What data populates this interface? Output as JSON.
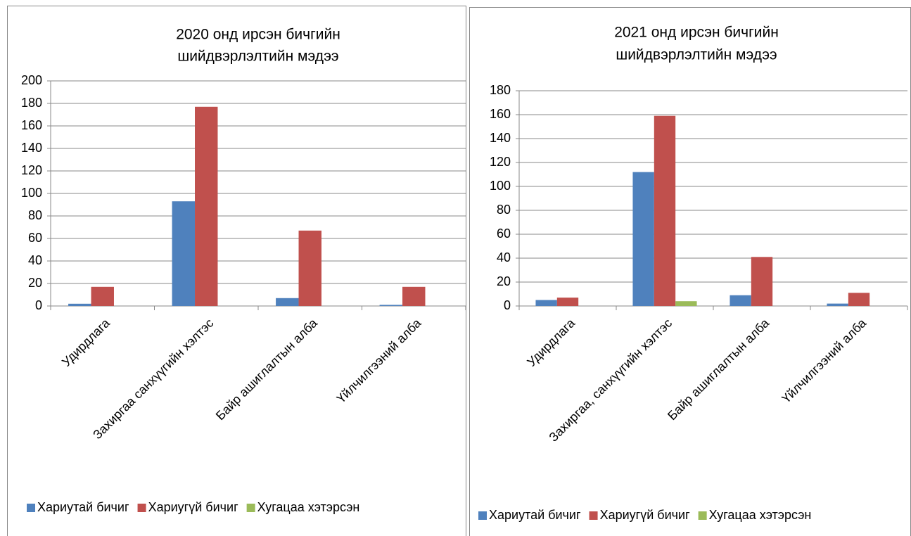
{
  "chart_data": [
    {
      "type": "bar",
      "title": [
        "2020 онд ирсэн бичгийн",
        "шийдвэрлэлтийн мэдээ"
      ],
      "categories": [
        "Удирдлага",
        "Захиргаа санхүүгийн хэлтэс",
        "Байр ашиглалтын алба",
        "Үйлчилгээний алба"
      ],
      "series": [
        {
          "name": "Хариутай бичиг",
          "color": "#4f81bd",
          "values": [
            2,
            93,
            7,
            1
          ]
        },
        {
          "name": "Хариугүй бичиг",
          "color": "#c0504d",
          "values": [
            17,
            177,
            67,
            17
          ]
        },
        {
          "name": "Хугацаа хэтэрсэн",
          "color": "#9bbb59",
          "values": [
            0,
            0,
            0,
            0
          ]
        }
      ],
      "ylim": [
        0,
        200
      ],
      "yticks": [
        0,
        20,
        40,
        60,
        80,
        100,
        120,
        140,
        160,
        180,
        200
      ],
      "grid": true,
      "legend": "bottom"
    },
    {
      "type": "bar",
      "title": [
        "2021 онд ирсэн бичгийн",
        "шийдвэрлэлтийн мэдээ"
      ],
      "categories": [
        "Удирдлага",
        "Захиргаа, санхүүгийн хэлтэс",
        "Байр ашиглалтын алба",
        "Үйлчилгээний алба"
      ],
      "series": [
        {
          "name": "Хариутай бичиг",
          "color": "#4f81bd",
          "values": [
            5,
            112,
            9,
            2
          ]
        },
        {
          "name": "Хариугүй бичиг",
          "color": "#c0504d",
          "values": [
            7,
            159,
            41,
            11
          ]
        },
        {
          "name": "Хугацаа хэтэрсэн",
          "color": "#9bbb59",
          "values": [
            0,
            4,
            0,
            0
          ]
        }
      ],
      "ylim": [
        0,
        180
      ],
      "yticks": [
        0,
        20,
        40,
        60,
        80,
        100,
        120,
        140,
        160,
        180
      ],
      "grid": true,
      "legend": "bottom"
    }
  ]
}
